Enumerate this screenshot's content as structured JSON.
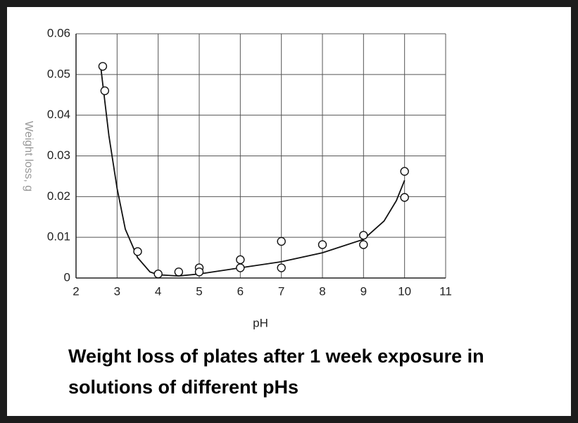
{
  "chart_data": {
    "type": "scatter",
    "ylabel": "Weight loss, g",
    "xlabel": "pH",
    "caption": "Weight loss of plates after 1 week exposure in solutions of different pHs",
    "xlim": [
      2,
      11
    ],
    "xticks": [
      2,
      3,
      4,
      5,
      6,
      7,
      8,
      9,
      10,
      11
    ],
    "ylim": [
      0,
      0.06
    ],
    "yticks": [
      0,
      0.01,
      0.02,
      0.03,
      0.04,
      0.05,
      0.06
    ],
    "grid": true,
    "series": [
      {
        "style": "markers",
        "color": "#111111",
        "x": [
          2.65,
          2.7,
          3.5,
          4,
          4.5,
          5,
          5,
          6,
          6,
          7,
          7,
          8,
          9,
          9,
          10,
          10
        ],
        "values": [
          0.052,
          0.046,
          0.0065,
          0.001,
          0.0015,
          0.0025,
          0.0015,
          0.0045,
          0.0025,
          0.009,
          0.0025,
          0.0082,
          0.0105,
          0.0082,
          0.0262,
          0.0198
        ]
      },
      {
        "style": "line",
        "color": "#111111",
        "x": [
          2.6,
          2.8,
          3,
          3.2,
          3.5,
          3.8,
          4,
          4.5,
          5,
          6,
          7,
          8,
          9,
          9.5,
          9.8,
          10
        ],
        "values": [
          0.052,
          0.035,
          0.022,
          0.012,
          0.005,
          0.0015,
          0.0008,
          0.0005,
          0.001,
          0.0025,
          0.004,
          0.0062,
          0.0095,
          0.014,
          0.019,
          0.024
        ]
      }
    ]
  }
}
